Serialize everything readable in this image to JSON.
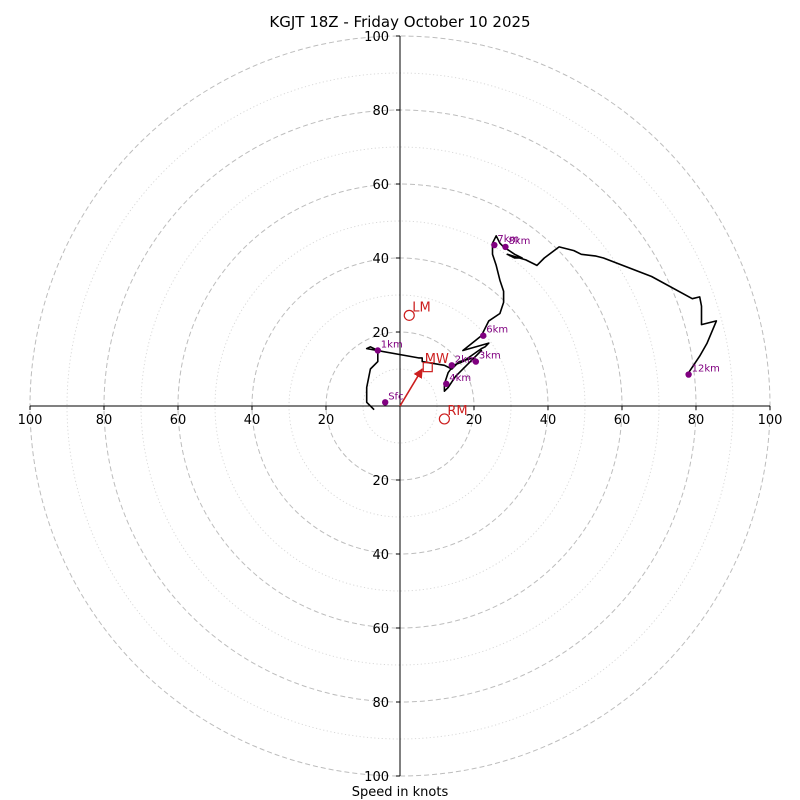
{
  "chart_data": {
    "type": "hodograph",
    "title": "KGJT 18Z - Friday October 10 2025",
    "xlabel": "Speed in knots",
    "max_speed": 100,
    "ring_major_step": 20,
    "ring_minor_step": 10,
    "tick_values": [
      20,
      40,
      60,
      80,
      100
    ],
    "tick_labels": [
      "20",
      "40",
      "60",
      "80",
      "100"
    ],
    "colors": {
      "trace": "#000000",
      "height_points": "#800080",
      "motion": "#cc1e1e",
      "grid": "#bdbdbd",
      "axis": "#000000"
    },
    "trace_uv": [
      [
        -7,
        -1
      ],
      [
        -9,
        1
      ],
      [
        -9,
        5
      ],
      [
        -8,
        10
      ],
      [
        -6,
        12
      ],
      [
        -6,
        15
      ],
      [
        -8,
        16
      ],
      [
        -9,
        15.5
      ],
      [
        5,
        13
      ],
      [
        6,
        13
      ],
      [
        6,
        12
      ],
      [
        12,
        11
      ],
      [
        14,
        10
      ],
      [
        16,
        12
      ],
      [
        20,
        13
      ],
      [
        22,
        15
      ],
      [
        20,
        13
      ],
      [
        15,
        8
      ],
      [
        13,
        5
      ],
      [
        12,
        4
      ],
      [
        12,
        6
      ],
      [
        12.5,
        7.5
      ],
      [
        13,
        9
      ],
      [
        14.5,
        11
      ],
      [
        17,
        12
      ],
      [
        22,
        15.5
      ],
      [
        23,
        16
      ],
      [
        24,
        17
      ],
      [
        17,
        15
      ],
      [
        22,
        19
      ],
      [
        24,
        23
      ],
      [
        27,
        25
      ],
      [
        28,
        28
      ],
      [
        28,
        31
      ],
      [
        27,
        34
      ],
      [
        26,
        38
      ],
      [
        25,
        41
      ],
      [
        25,
        44
      ],
      [
        26,
        46
      ],
      [
        27,
        44
      ],
      [
        28,
        43
      ],
      [
        31,
        41
      ],
      [
        33,
        40
      ],
      [
        31,
        40
      ],
      [
        29,
        41
      ],
      [
        34,
        39.5
      ],
      [
        37,
        38
      ],
      [
        39,
        40
      ],
      [
        43,
        43
      ],
      [
        47,
        42
      ],
      [
        49,
        41
      ],
      [
        53,
        40.5
      ],
      [
        55,
        40
      ],
      [
        68,
        35
      ],
      [
        79,
        29
      ],
      [
        81,
        29.5
      ],
      [
        81.5,
        27
      ],
      [
        81.5,
        22
      ],
      [
        85.5,
        23
      ],
      [
        83,
        17
      ],
      [
        81,
        13.5
      ],
      [
        78,
        9
      ]
    ],
    "height_labels": [
      {
        "label": "Sfc",
        "u": -4,
        "v": 1
      },
      {
        "label": "1km",
        "u": -6,
        "v": 15
      },
      {
        "label": "2km",
        "u": 14,
        "v": 11
      },
      {
        "label": "3km",
        "u": 20.5,
        "v": 12
      },
      {
        "label": "4km",
        "u": 12.5,
        "v": 6
      },
      {
        "label": "6km",
        "u": 22.5,
        "v": 19
      },
      {
        "label": "7km",
        "u": 25.5,
        "v": 43.5
      },
      {
        "label": "8km",
        "u": 28.5,
        "v": 43
      },
      {
        "label": "12km",
        "u": 78,
        "v": 8.5
      }
    ],
    "motions": [
      {
        "label": "LM",
        "u": 2.5,
        "v": 24.5,
        "marker": "circle"
      },
      {
        "label": "RM",
        "u": 12,
        "v": -3.5,
        "marker": "circle"
      },
      {
        "label": "MW",
        "u": 7.5,
        "v": 10.5,
        "marker": "square"
      }
    ],
    "mean_wind_arrow": {
      "u": 6,
      "v": 10
    }
  }
}
